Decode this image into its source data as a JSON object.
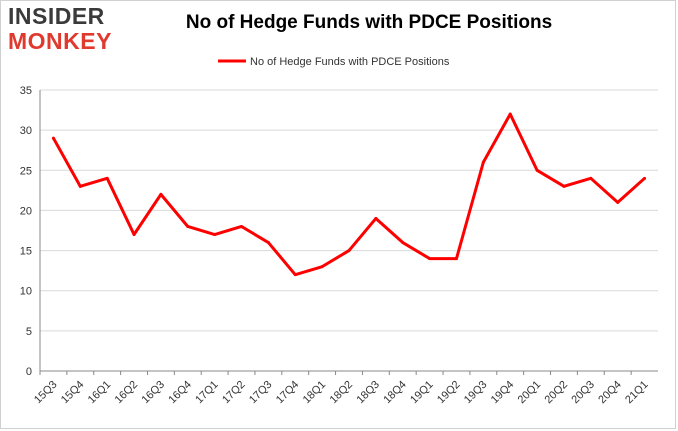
{
  "logo": {
    "line1": "INSIDER",
    "line2": "MONKEY"
  },
  "colors": {
    "series": "#ff0000",
    "grid": "#d9d9d9",
    "axis": "#888888",
    "logo_red": "#e03a2f"
  },
  "chart_data": {
    "type": "line",
    "title": "No of Hedge Funds with PDCE Positions",
    "categories": [
      "15Q3",
      "15Q4",
      "16Q1",
      "16Q2",
      "16Q3",
      "16Q4",
      "17Q1",
      "17Q2",
      "17Q3",
      "17Q4",
      "18Q1",
      "18Q2",
      "18Q3",
      "18Q4",
      "19Q1",
      "19Q2",
      "19Q3",
      "19Q4",
      "20Q1",
      "20Q2",
      "20Q3",
      "20Q4",
      "21Q1"
    ],
    "series": [
      {
        "name": "No of Hedge Funds with PDCE Positions",
        "values": [
          29,
          23,
          24,
          17,
          22,
          18,
          17,
          18,
          16,
          12,
          13,
          15,
          19,
          16,
          14,
          14,
          26,
          32,
          25,
          23,
          24,
          21,
          24
        ]
      }
    ],
    "ylim": [
      0,
      35
    ],
    "yticks": [
      0,
      5,
      10,
      15,
      20,
      25,
      30,
      35
    ],
    "grid": true,
    "legend": "top-center"
  }
}
